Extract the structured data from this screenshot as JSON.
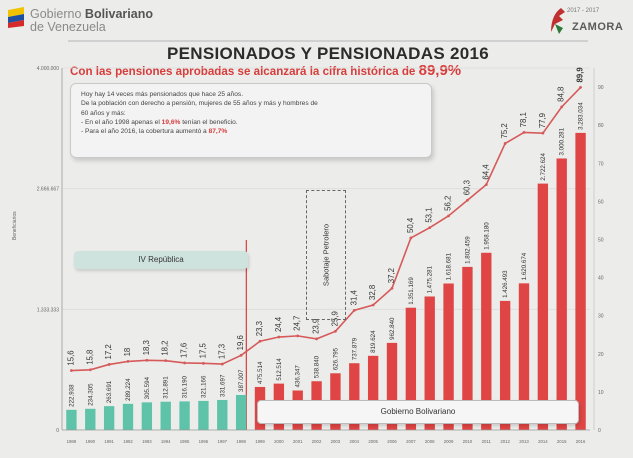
{
  "header": {
    "gov_line1_prefix": "Gobierno",
    "gov_line1_bold": "Bolivariano",
    "gov_line2": "de Venezuela",
    "right_logo_text": "ZAMORA",
    "right_logo_years": "2017 - 2017"
  },
  "title": "PENSIONADOS Y PENSIONADAS 2016",
  "subtitle": {
    "text": "Con las pensiones aprobadas se alcanzará la cifra histórica de",
    "value": "89,9%"
  },
  "info_box": {
    "line1": "Hoy hay 14 veces más pensionados que hace 25 años.",
    "line2": "De la población con derecho a pensión, mujeres de 55 años y más y hombres de",
    "line3": "60 años y más:",
    "b1_pre": "- En el año 1998 apenas el",
    "b1_val": "19,6%",
    "b1_post": "tenían el beneficio.",
    "b2_pre": "- Para el año 2016, la cobertura aumentó a",
    "b2_val": "87,7%"
  },
  "labels": {
    "cuarta_republica": "IV República",
    "gobierno_bolivariano": "Gobierno Bolivariano",
    "sabotaje": "Sabotaje Petrolero",
    "ylabel": "Beneficiarios"
  },
  "colors": {
    "teal_bar": "#5fc3a9",
    "red_bar": "#e04545",
    "line": "#d65a5a",
    "subtitle": "#d83c3c"
  },
  "chart_data": {
    "type": "bar+line",
    "categories": [
      "1989",
      "1990",
      "1991",
      "1992",
      "1993",
      "1994",
      "1995",
      "1996",
      "1997",
      "1998",
      "1999",
      "2000",
      "2001",
      "2002",
      "2003",
      "2004",
      "2005",
      "2006",
      "2007",
      "2008",
      "2009",
      "2010",
      "2011",
      "2012",
      "2013",
      "2014",
      "2015",
      "2016"
    ],
    "series": [
      {
        "name": "Beneficiarios",
        "kind": "bar",
        "values": [
          222938,
          234305,
          263691,
          289224,
          305594,
          312891,
          316190,
          321166,
          331697,
          387007,
          475514,
          512514,
          436347,
          538840,
          626795,
          737879,
          819624,
          962840,
          1351169,
          1475281,
          1618681,
          1802459,
          1958180,
          1426493,
          1620674,
          2722624,
          3000281,
          3283034
        ],
        "label_text": [
          "222.938",
          "234.305",
          "263.691",
          "289.224",
          "305.594",
          "312.891",
          "316.190",
          "321.166",
          "331.697",
          "387.007",
          "475.514",
          "512.514",
          "436.347",
          "538.840",
          "626.795",
          "737.879",
          "819.624",
          "962.840",
          "1.351.169",
          "1.475.281",
          "1.618.681",
          "1.802.459",
          "1.958.180",
          "1.426.493",
          "1.620.674",
          "2.722.624",
          "3.000.281",
          "3.283.034"
        ]
      },
      {
        "name": "Porcentaje",
        "kind": "line",
        "values": [
          15.6,
          15.8,
          17.2,
          18,
          18.3,
          18.2,
          17.6,
          17.5,
          17.3,
          19.6,
          23.3,
          24.4,
          24.7,
          23.9,
          25.9,
          31.4,
          32.8,
          37.2,
          50.4,
          53.1,
          56.2,
          60.3,
          64.4,
          75.2,
          78.1,
          77.9,
          84.8,
          89.9
        ],
        "label_text": [
          "15,6",
          "15,8",
          "17,2",
          "18",
          "18,3",
          "18,2",
          "17,6",
          "17,5",
          "17,3",
          "19,6",
          "23,3",
          "24,4",
          "24,7",
          "23,9",
          "25,9",
          "31,4",
          "32,8",
          "37,2",
          "50,4",
          "53,1",
          "56,2",
          "60,3",
          "64,4",
          "75,2",
          "78,1",
          "77,9",
          "84,8",
          "89,9"
        ]
      }
    ],
    "left_ticks": [
      "4.000.000",
      "2.666.667",
      "1.333.333",
      "0"
    ],
    "left_ylim": [
      0,
      4000000
    ],
    "right_ticks": [
      "0",
      "10",
      "20",
      "30",
      "40",
      "50",
      "60",
      "70",
      "80",
      "90"
    ],
    "right_ylim": [
      0,
      95
    ]
  }
}
